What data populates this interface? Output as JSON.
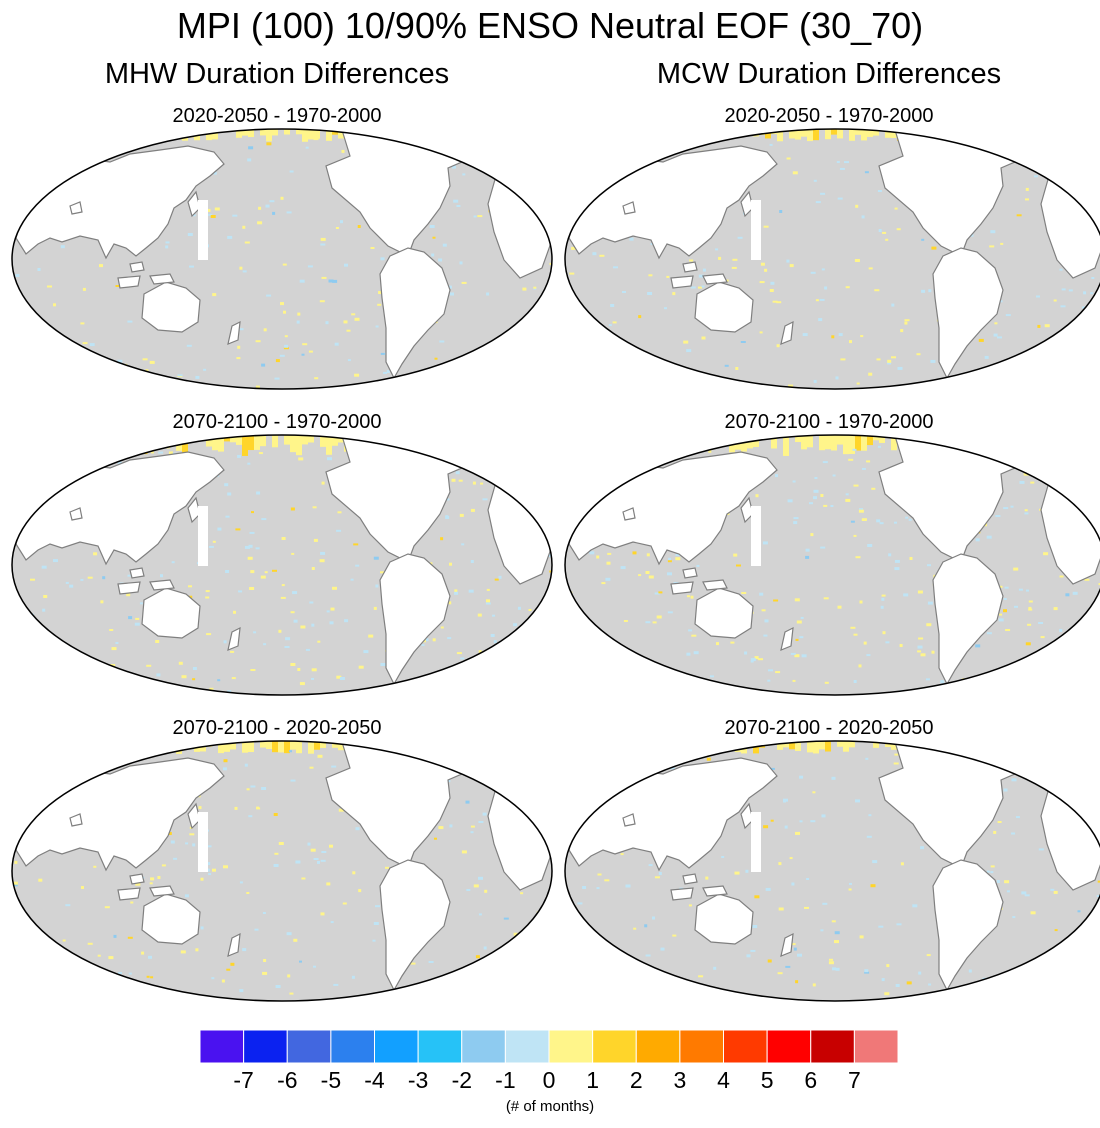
{
  "title": "MPI (100) 10/90% ENSO Neutral EOF (30_70)",
  "columns": [
    {
      "title": "MHW Duration Differences"
    },
    {
      "title": "MCW Duration Differences"
    }
  ],
  "panels": [
    {
      "title": "2020-2050 - 1970-2000",
      "column": 0,
      "row": 0,
      "seed": 11,
      "intensity": 1
    },
    {
      "title": "2020-2050 - 1970-2000",
      "column": 1,
      "row": 0,
      "seed": 23,
      "intensity": 1
    },
    {
      "title": "2070-2100 - 1970-2000",
      "column": 0,
      "row": 1,
      "seed": 37,
      "intensity": 2
    },
    {
      "title": "2070-2100 - 1970-2000",
      "column": 1,
      "row": 1,
      "seed": 41,
      "intensity": 2
    },
    {
      "title": "2070-2100 - 2020-2050",
      "column": 0,
      "row": 2,
      "seed": 53,
      "intensity": 1
    },
    {
      "title": "2070-2100 - 2020-2050",
      "column": 1,
      "row": 2,
      "seed": 67,
      "intensity": 1
    }
  ],
  "colorbar": {
    "labels": [
      "-7",
      "-6",
      "-5",
      "-4",
      "-3",
      "-2",
      "-1",
      "0",
      "1",
      "2",
      "3",
      "4",
      "5",
      "6",
      "7"
    ],
    "colors": [
      "#4a12f0",
      "#0b22f0",
      "#4267e0",
      "#2c80ee",
      "#12a0ff",
      "#26c2f7",
      "#8ecbf0",
      "#bfe4f5",
      "#fff58a",
      "#ffd52a",
      "#ffaa00",
      "#ff7a00",
      "#ff3a00",
      "#ff0000",
      "#c80000",
      "#f07878"
    ],
    "units": "(# of months)"
  },
  "style": {
    "ocean": "#d3d3d3",
    "land": "#ffffff",
    "coast": "#7f7f7f"
  }
}
